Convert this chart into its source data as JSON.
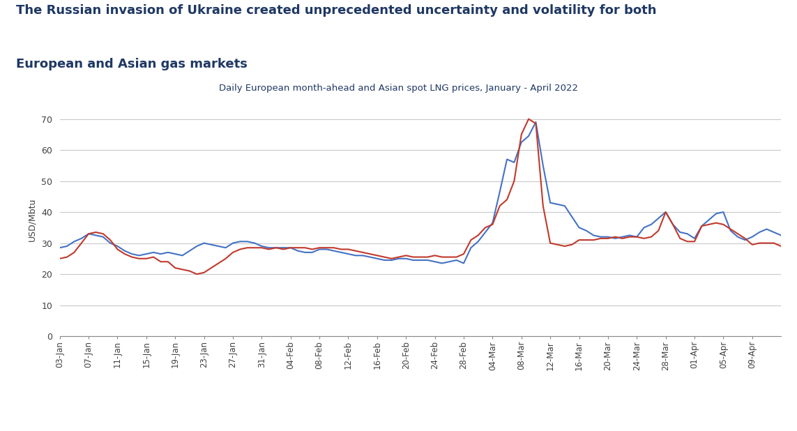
{
  "title_line1": "The Russian invasion of Ukraine created unprecedented uncertainty and volatility for both",
  "title_line2": "European and Asian gas markets",
  "subtitle": "Daily European month-ahead and Asian spot LNG prices, January - April 2022",
  "ylabel": "USD/Mbtu",
  "title_color": "#1f3864",
  "subtitle_color": "#1f3864",
  "ylabel_color": "#404040",
  "tick_color": "#404040",
  "background_color": "#ffffff",
  "ylim": [
    0,
    75
  ],
  "yticks": [
    0,
    10,
    20,
    30,
    40,
    50,
    60,
    70
  ],
  "ttf_color": "#4472c4",
  "asian_color": "#c0392b",
  "grid_color": "#c8c8c8",
  "x_tick_labels": [
    "03-Jan",
    "07-Jan",
    "11-Jan",
    "15-Jan",
    "19-Jan",
    "23-Jan",
    "27-Jan",
    "31-Jan",
    "04-Feb",
    "08-Feb",
    "12-Feb",
    "16-Feb",
    "20-Feb",
    "24-Feb",
    "28-Feb",
    "04-Mar",
    "08-Mar",
    "12-Mar",
    "16-Mar",
    "20-Mar",
    "24-Mar",
    "28-Mar",
    "01-Apr",
    "05-Apr",
    "09-Apr"
  ],
  "ttf_values": [
    28.5,
    29.0,
    30.5,
    31.5,
    33.0,
    32.5,
    32.0,
    30.0,
    29.0,
    27.5,
    26.5,
    26.0,
    26.5,
    27.0,
    26.5,
    27.0,
    26.5,
    26.0,
    27.5,
    29.0,
    30.0,
    29.5,
    29.0,
    28.5,
    30.0,
    30.5,
    30.5,
    30.0,
    29.0,
    28.5,
    28.5,
    28.5,
    28.5,
    27.5,
    27.0,
    27.0,
    28.0,
    28.0,
    27.5,
    27.0,
    26.5,
    26.0,
    26.0,
    25.5,
    25.0,
    24.5,
    24.5,
    25.0,
    25.0,
    24.5,
    24.5,
    24.5,
    24.0,
    23.5,
    24.0,
    24.5,
    23.5,
    28.5,
    30.5,
    33.5,
    36.5,
    46.5,
    57.0,
    56.0,
    62.5,
    64.5,
    69.0,
    55.0,
    43.0,
    42.5,
    42.0,
    38.5,
    35.0,
    34.0,
    32.5,
    32.0,
    32.0,
    31.5,
    32.0,
    32.5,
    32.0,
    35.0,
    36.0,
    38.0,
    40.0,
    36.0,
    33.5,
    33.0,
    31.5,
    35.5,
    37.5,
    39.5,
    40.0,
    34.0,
    32.0,
    31.0,
    32.0,
    33.5,
    34.5,
    33.5,
    32.5
  ],
  "asian_values": [
    25.0,
    25.5,
    27.0,
    30.0,
    33.0,
    33.5,
    33.0,
    31.0,
    28.0,
    26.5,
    25.5,
    25.0,
    25.0,
    25.5,
    24.0,
    24.0,
    22.0,
    21.5,
    21.0,
    20.0,
    20.5,
    22.0,
    23.5,
    25.0,
    27.0,
    28.0,
    28.5,
    28.5,
    28.5,
    28.0,
    28.5,
    28.0,
    28.5,
    28.5,
    28.5,
    28.0,
    28.5,
    28.5,
    28.5,
    28.0,
    28.0,
    27.5,
    27.0,
    26.5,
    26.0,
    25.5,
    25.0,
    25.5,
    26.0,
    25.5,
    25.5,
    25.5,
    26.0,
    25.5,
    25.5,
    25.5,
    26.5,
    31.0,
    32.5,
    35.0,
    36.0,
    42.0,
    44.0,
    50.0,
    65.0,
    70.0,
    68.5,
    42.0,
    30.0,
    29.5,
    29.0,
    29.5,
    31.0,
    31.0,
    31.0,
    31.5,
    31.5,
    32.0,
    31.5,
    32.0,
    32.0,
    31.5,
    32.0,
    34.0,
    40.0,
    36.0,
    31.5,
    30.5,
    30.5,
    35.5,
    36.0,
    36.5,
    36.0,
    34.5,
    33.0,
    31.5,
    29.5,
    30.0,
    30.0,
    30.0,
    29.0
  ]
}
